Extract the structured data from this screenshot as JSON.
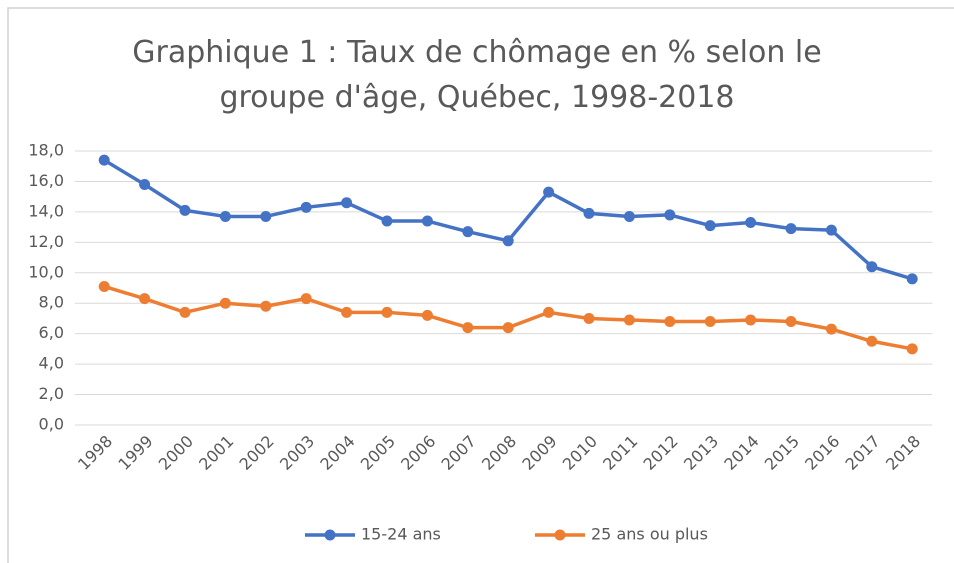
{
  "chart_data": {
    "type": "line",
    "title": "Graphique 1 : Taux de chômage en % selon le groupe d'âge, Québec, 1998-2018",
    "categories": [
      "1998",
      "1999",
      "2000",
      "2001",
      "2002",
      "2003",
      "2004",
      "2005",
      "2006",
      "2007",
      "2008",
      "2009",
      "2010",
      "2011",
      "2012",
      "2013",
      "2014",
      "2015",
      "2016",
      "2017",
      "2018"
    ],
    "series": [
      {
        "name": "15-24 ans",
        "color": "#4472c4",
        "values": [
          17.4,
          15.8,
          14.1,
          13.7,
          13.7,
          14.3,
          14.6,
          13.4,
          13.4,
          12.7,
          12.1,
          15.3,
          13.9,
          13.7,
          13.8,
          13.1,
          13.3,
          12.9,
          12.8,
          10.4,
          9.6
        ]
      },
      {
        "name": "25 ans ou plus",
        "color": "#ed7d31",
        "values": [
          9.1,
          8.3,
          7.4,
          8.0,
          7.8,
          8.3,
          7.4,
          7.4,
          7.2,
          6.4,
          6.4,
          7.4,
          7.0,
          6.9,
          6.8,
          6.8,
          6.9,
          6.8,
          6.3,
          5.5,
          5.0
        ]
      }
    ],
    "ylim": [
      0,
      18
    ],
    "yticks": [
      {
        "value": 0,
        "label": "0,0"
      },
      {
        "value": 2,
        "label": "2,0"
      },
      {
        "value": 4,
        "label": "4,0"
      },
      {
        "value": 6,
        "label": "6,0"
      },
      {
        "value": 8,
        "label": "8,0"
      },
      {
        "value": 10,
        "label": "10,0"
      },
      {
        "value": 12,
        "label": "12,0"
      },
      {
        "value": 14,
        "label": "14,0"
      },
      {
        "value": 16,
        "label": "16,0"
      },
      {
        "value": 18,
        "label": "18,0"
      }
    ],
    "grid": true,
    "legend": "bottom"
  }
}
